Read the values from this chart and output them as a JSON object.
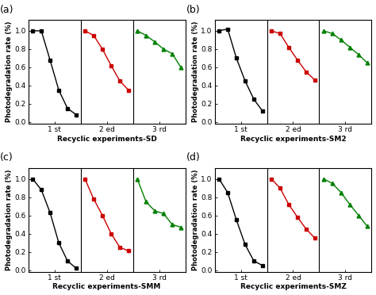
{
  "subplots": [
    {
      "label": "(a)",
      "xlabel": "Recyclic experiments-SD",
      "series": [
        {
          "color": "#000000",
          "marker": "s",
          "x": [
            1,
            2,
            3,
            4,
            5,
            6
          ],
          "y": [
            1.0,
            1.0,
            0.68,
            0.35,
            0.15,
            0.08
          ]
        },
        {
          "color": "#cc0000",
          "marker": "s",
          "x": [
            7,
            8,
            9,
            10,
            11,
            12
          ],
          "y": [
            1.0,
            0.95,
            0.8,
            0.62,
            0.45,
            0.35
          ]
        },
        {
          "color": "#008000",
          "marker": "^",
          "x": [
            13,
            14,
            15,
            16,
            17,
            18
          ],
          "y": [
            1.0,
            0.95,
            0.88,
            0.8,
            0.75,
            0.6
          ]
        }
      ],
      "vlines": [
        6.5,
        12.5
      ],
      "xticks": [
        3.5,
        9.5,
        15.5
      ],
      "xticklabels": [
        "1 st",
        "2 ed",
        "3 rd"
      ]
    },
    {
      "label": "(b)",
      "xlabel": "Recyclic experiments-SM2",
      "series": [
        {
          "color": "#000000",
          "marker": "s",
          "x": [
            1,
            2,
            3,
            4,
            5,
            6
          ],
          "y": [
            1.0,
            1.02,
            0.7,
            0.45,
            0.25,
            0.12
          ]
        },
        {
          "color": "#cc0000",
          "marker": "s",
          "x": [
            7,
            8,
            9,
            10,
            11,
            12
          ],
          "y": [
            1.0,
            0.97,
            0.82,
            0.68,
            0.55,
            0.46
          ]
        },
        {
          "color": "#008000",
          "marker": "^",
          "x": [
            13,
            14,
            15,
            16,
            17,
            18
          ],
          "y": [
            1.0,
            0.97,
            0.9,
            0.82,
            0.74,
            0.65
          ]
        }
      ],
      "vlines": [
        6.5,
        12.5
      ],
      "xticks": [
        3.5,
        9.5,
        15.5
      ],
      "xticklabels": [
        "1 st",
        "2 ed",
        "3 rd"
      ]
    },
    {
      "label": "(c)",
      "xlabel": "Recyclic experiments-SMM",
      "series": [
        {
          "color": "#000000",
          "marker": "s",
          "x": [
            1,
            2,
            3,
            4,
            5,
            6
          ],
          "y": [
            1.0,
            0.88,
            0.63,
            0.3,
            0.1,
            0.02
          ]
        },
        {
          "color": "#cc0000",
          "marker": "s",
          "x": [
            7,
            8,
            9,
            10,
            11,
            12
          ],
          "y": [
            1.0,
            0.78,
            0.6,
            0.4,
            0.25,
            0.21
          ]
        },
        {
          "color": "#008000",
          "marker": "^",
          "x": [
            13,
            14,
            15,
            16,
            17,
            18
          ],
          "y": [
            1.0,
            0.75,
            0.65,
            0.62,
            0.5,
            0.47
          ]
        }
      ],
      "vlines": [
        6.5,
        12.5
      ],
      "xticks": [
        3.5,
        9.5,
        15.5
      ],
      "xticklabels": [
        "1 st",
        "2 ed",
        "3 rd"
      ]
    },
    {
      "label": "(d)",
      "xlabel": "Recyclic experiments-SMZ",
      "series": [
        {
          "color": "#000000",
          "marker": "s",
          "x": [
            1,
            2,
            3,
            4,
            5,
            6
          ],
          "y": [
            1.0,
            0.85,
            0.55,
            0.28,
            0.1,
            0.05
          ]
        },
        {
          "color": "#cc0000",
          "marker": "s",
          "x": [
            7,
            8,
            9,
            10,
            11,
            12
          ],
          "y": [
            1.0,
            0.9,
            0.72,
            0.58,
            0.45,
            0.35
          ]
        },
        {
          "color": "#008000",
          "marker": "^",
          "x": [
            13,
            14,
            15,
            16,
            17,
            18
          ],
          "y": [
            1.0,
            0.95,
            0.85,
            0.72,
            0.6,
            0.48
          ]
        }
      ],
      "vlines": [
        6.5,
        12.5
      ],
      "xticks": [
        3.5,
        9.5,
        15.5
      ],
      "xticklabels": [
        "1 st",
        "2 ed",
        "3 rd"
      ]
    }
  ],
  "ylabel": "Photodegradation rate (%)",
  "ylim": [
    -0.02,
    1.12
  ],
  "xlim": [
    0.5,
    18.5
  ],
  "yticks": [
    0.0,
    0.2,
    0.4,
    0.6,
    0.8,
    1.0
  ],
  "markersize": 3.5,
  "linewidth": 1.0,
  "bg_color": "#ffffff"
}
